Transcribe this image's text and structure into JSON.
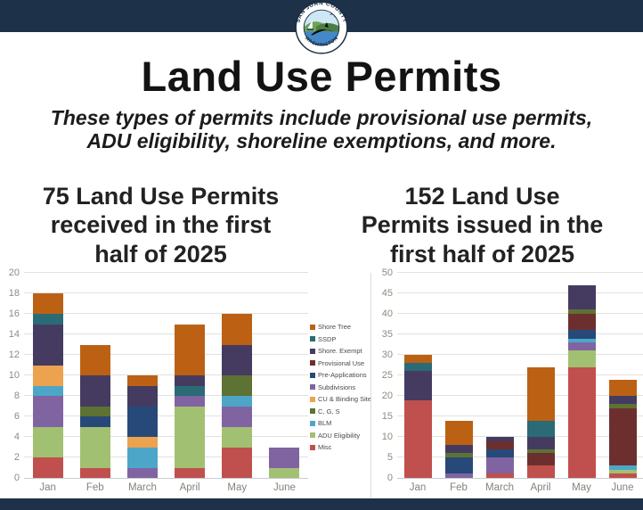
{
  "logo": {
    "top_text": "SAN JUAN COUNTY",
    "bottom_text": "WASHINGTON"
  },
  "header": {
    "title": "Land Use Permits",
    "subtitle_lines": [
      "These types of permits include provisional use permits,",
      "ADU eligibility, shoreline exemptions, and more."
    ]
  },
  "sections": {
    "left_heading_lines": [
      "75 Land Use Permits",
      "received in the first",
      "half of 2025"
    ],
    "right_heading_lines": [
      "152 Land Use",
      "Permits issued in the",
      "first half of 2025"
    ]
  },
  "legend": {
    "position": "between-charts",
    "items": [
      {
        "label": "Shore Tree",
        "color": "#bc6114"
      },
      {
        "label": "SSDP",
        "color": "#2a6b75"
      },
      {
        "label": "Shore. Exempt",
        "color": "#453b60"
      },
      {
        "label": "Provisional Use",
        "color": "#6d2f2e"
      },
      {
        "label": "Pre-Applications",
        "color": "#27497a"
      },
      {
        "label": "Subdivisions",
        "color": "#8064a2"
      },
      {
        "label": "CU & Binding Site",
        "color": "#eda24f"
      },
      {
        "label": "C, G, S",
        "color": "#5e7233"
      },
      {
        "label": "BLM",
        "color": "#4da6c8"
      },
      {
        "label": "ADU Eligibility",
        "color": "#a2c072"
      },
      {
        "label": "Misc",
        "color": "#c0504d"
      }
    ]
  },
  "chart_data": [
    {
      "type": "bar",
      "stacked": true,
      "title": "75 Land Use Permits received in the first half of 2025",
      "categories": [
        "Jan",
        "Feb",
        "March",
        "April",
        "May",
        "June"
      ],
      "ylim": [
        0,
        20
      ],
      "ytick_step": 2,
      "grid": true,
      "totals": [
        18,
        13,
        10,
        15,
        16,
        3
      ],
      "bars": [
        [
          {
            "series": "Misc",
            "value": 2
          },
          {
            "series": "ADU Eligibility",
            "value": 3
          },
          {
            "series": "Subdivisions",
            "value": 3
          },
          {
            "series": "BLM",
            "value": 1
          },
          {
            "series": "CU & Binding Site",
            "value": 2
          },
          {
            "series": "Shore. Exempt",
            "value": 4
          },
          {
            "series": "SSDP",
            "value": 1
          },
          {
            "series": "Shore Tree",
            "value": 2
          }
        ],
        [
          {
            "series": "Misc",
            "value": 1
          },
          {
            "series": "ADU Eligibility",
            "value": 4
          },
          {
            "series": "Pre-Applications",
            "value": 1
          },
          {
            "series": "C, G, S",
            "value": 1
          },
          {
            "series": "Shore. Exempt",
            "value": 3
          },
          {
            "series": "Shore Tree",
            "value": 3
          }
        ],
        [
          {
            "series": "Subdivisions",
            "value": 1
          },
          {
            "series": "BLM",
            "value": 2
          },
          {
            "series": "CU & Binding Site",
            "value": 1
          },
          {
            "series": "Pre-Applications",
            "value": 3
          },
          {
            "series": "Shore. Exempt",
            "value": 2
          },
          {
            "series": "Shore Tree",
            "value": 1
          }
        ],
        [
          {
            "series": "Misc",
            "value": 1
          },
          {
            "series": "ADU Eligibility",
            "value": 6
          },
          {
            "series": "Subdivisions",
            "value": 1
          },
          {
            "series": "SSDP",
            "value": 1
          },
          {
            "series": "Shore. Exempt",
            "value": 1
          },
          {
            "series": "Shore Tree",
            "value": 5
          }
        ],
        [
          {
            "series": "Misc",
            "value": 3
          },
          {
            "series": "ADU Eligibility",
            "value": 2
          },
          {
            "series": "Subdivisions",
            "value": 2
          },
          {
            "series": "BLM",
            "value": 1
          },
          {
            "series": "C, G, S",
            "value": 2
          },
          {
            "series": "Shore. Exempt",
            "value": 3
          },
          {
            "series": "Shore Tree",
            "value": 3
          }
        ],
        [
          {
            "series": "ADU Eligibility",
            "value": 1
          },
          {
            "series": "Subdivisions",
            "value": 2
          }
        ]
      ]
    },
    {
      "type": "bar",
      "stacked": true,
      "title": "152 Land Use Permits issued in the first half of 2025",
      "categories": [
        "Jan",
        "Feb",
        "March",
        "April",
        "May",
        "June"
      ],
      "ylim": [
        0,
        50
      ],
      "ytick_step": 5,
      "grid": true,
      "totals": [
        30,
        14,
        10,
        27,
        47,
        24
      ],
      "bars": [
        [
          {
            "series": "Misc",
            "value": 19
          },
          {
            "series": "Shore. Exempt",
            "value": 7
          },
          {
            "series": "SSDP",
            "value": 2
          },
          {
            "series": "Shore Tree",
            "value": 2
          }
        ],
        [
          {
            "series": "Subdivisions",
            "value": 1
          },
          {
            "series": "Pre-Applications",
            "value": 4
          },
          {
            "series": "C, G, S",
            "value": 1
          },
          {
            "series": "Shore. Exempt",
            "value": 2
          },
          {
            "series": "Shore Tree",
            "value": 6
          }
        ],
        [
          {
            "series": "Misc",
            "value": 1
          },
          {
            "series": "Subdivisions",
            "value": 4
          },
          {
            "series": "Pre-Applications",
            "value": 2
          },
          {
            "series": "Provisional Use",
            "value": 2
          },
          {
            "series": "Shore. Exempt",
            "value": 1
          }
        ],
        [
          {
            "series": "Misc",
            "value": 3
          },
          {
            "series": "Provisional Use",
            "value": 3
          },
          {
            "series": "C, G, S",
            "value": 1
          },
          {
            "series": "Shore. Exempt",
            "value": 3
          },
          {
            "series": "SSDP",
            "value": 4
          },
          {
            "series": "Shore Tree",
            "value": 13
          }
        ],
        [
          {
            "series": "Misc",
            "value": 27
          },
          {
            "series": "ADU Eligibility",
            "value": 4
          },
          {
            "series": "Subdivisions",
            "value": 2
          },
          {
            "series": "BLM",
            "value": 1
          },
          {
            "series": "Pre-Applications",
            "value": 2
          },
          {
            "series": "Provisional Use",
            "value": 4
          },
          {
            "series": "C, G, S",
            "value": 1
          },
          {
            "series": "Shore. Exempt",
            "value": 6
          }
        ],
        [
          {
            "series": "Misc",
            "value": 1
          },
          {
            "series": "ADU Eligibility",
            "value": 1
          },
          {
            "series": "BLM",
            "value": 1
          },
          {
            "series": "Provisional Use",
            "value": 14
          },
          {
            "series": "C, G, S",
            "value": 1
          },
          {
            "series": "Shore. Exempt",
            "value": 2
          },
          {
            "series": "Shore Tree",
            "value": 4
          }
        ]
      ]
    }
  ],
  "colors": {
    "banner": "#1d3148",
    "background": "#ffffff"
  }
}
